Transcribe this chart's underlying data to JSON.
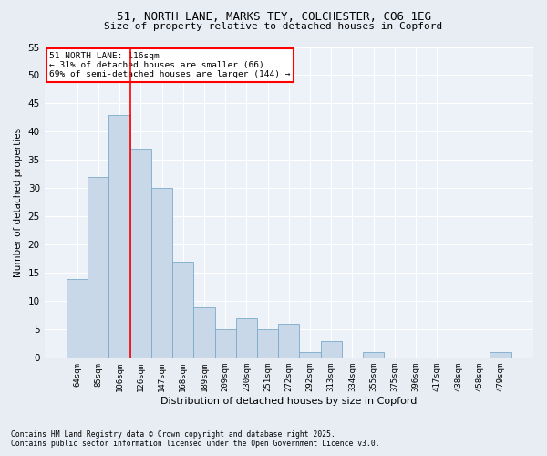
{
  "title1": "51, NORTH LANE, MARKS TEY, COLCHESTER, CO6 1EG",
  "title2": "Size of property relative to detached houses in Copford",
  "xlabel": "Distribution of detached houses by size in Copford",
  "ylabel": "Number of detached properties",
  "categories": [
    "64sqm",
    "85sqm",
    "106sqm",
    "126sqm",
    "147sqm",
    "168sqm",
    "189sqm",
    "209sqm",
    "230sqm",
    "251sqm",
    "272sqm",
    "292sqm",
    "313sqm",
    "334sqm",
    "355sqm",
    "375sqm",
    "396sqm",
    "417sqm",
    "438sqm",
    "458sqm",
    "479sqm"
  ],
  "values": [
    14,
    32,
    43,
    37,
    30,
    17,
    9,
    5,
    7,
    5,
    6,
    1,
    3,
    0,
    1,
    0,
    0,
    0,
    0,
    0,
    1
  ],
  "bar_color": "#c8d8e8",
  "bar_edge_color": "#7aaac8",
  "bar_linewidth": 0.6,
  "vline_x": 2.5,
  "vline_color": "red",
  "annotation_title": "51 NORTH LANE: 116sqm",
  "annotation_line1": "← 31% of detached houses are smaller (66)",
  "annotation_line2": "69% of semi-detached houses are larger (144) →",
  "annotation_box_color": "white",
  "annotation_box_edgecolor": "red",
  "ylim": [
    0,
    55
  ],
  "yticks": [
    0,
    5,
    10,
    15,
    20,
    25,
    30,
    35,
    40,
    45,
    50,
    55
  ],
  "footnote1": "Contains HM Land Registry data © Crown copyright and database right 2025.",
  "footnote2": "Contains public sector information licensed under the Open Government Licence v3.0.",
  "bg_color": "#e8edf4",
  "plot_bg_color": "#edf1f8"
}
